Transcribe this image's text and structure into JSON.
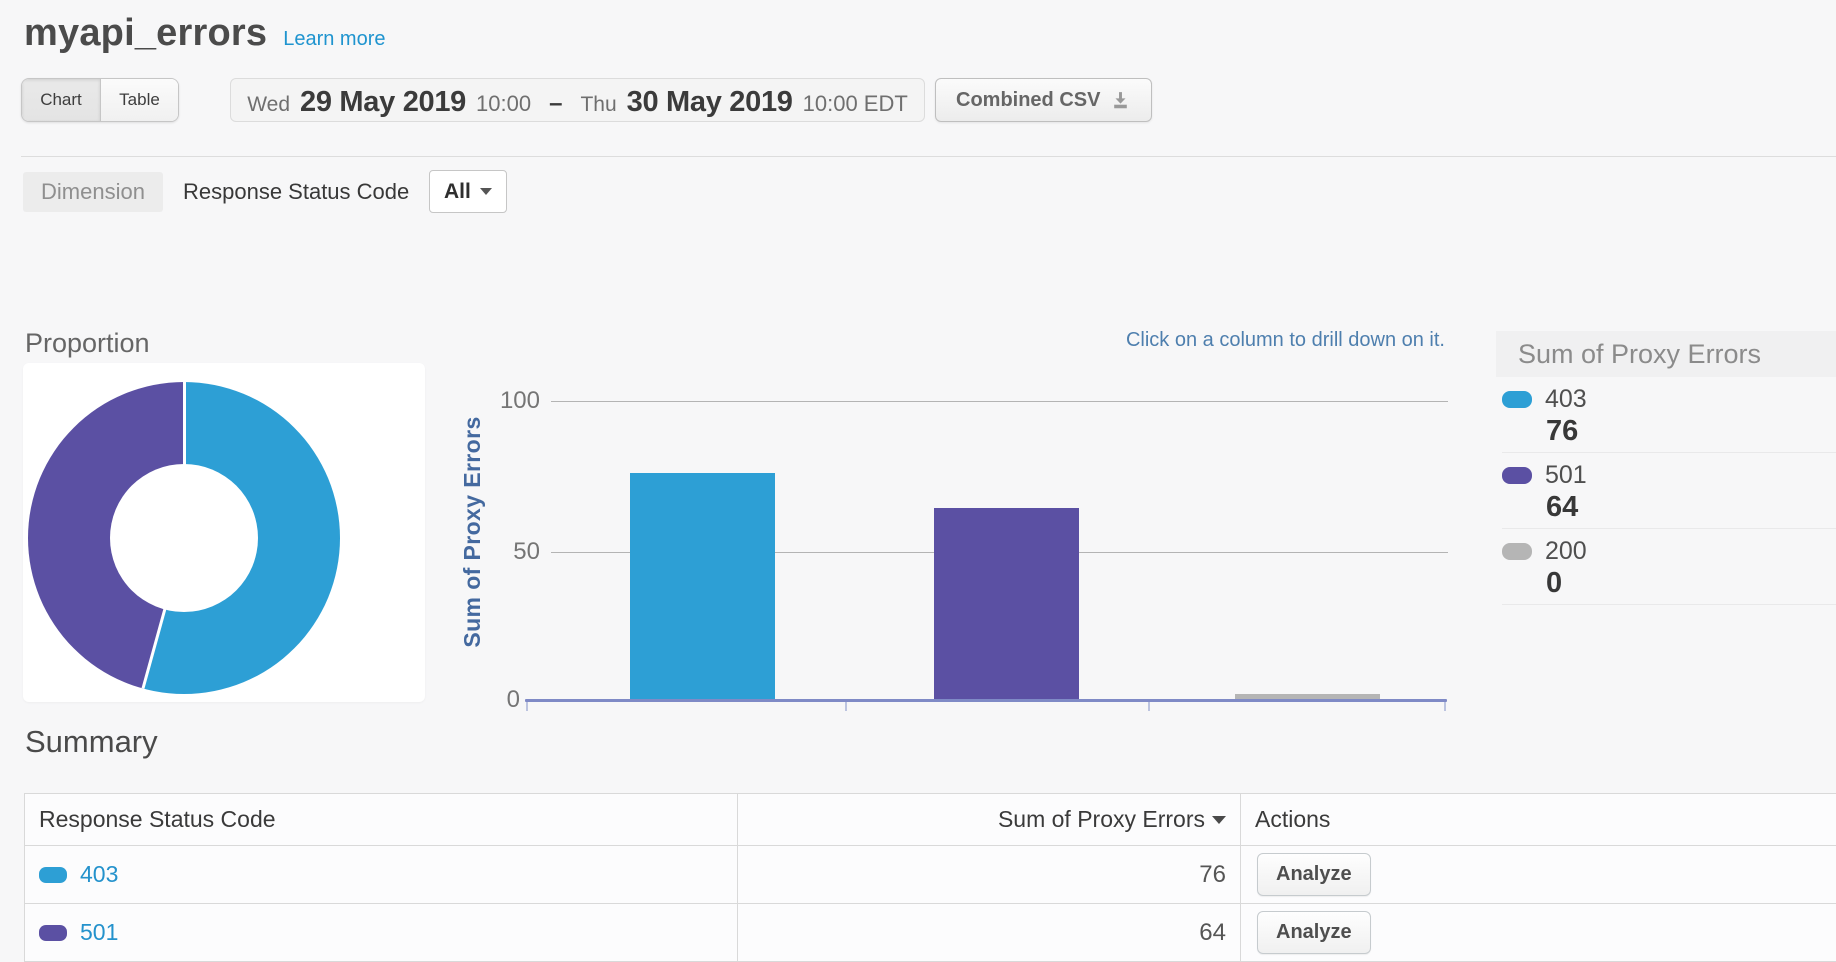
{
  "header": {
    "title": "myapi_errors",
    "learn_more": "Learn more"
  },
  "toolbar": {
    "view_toggle": {
      "chart": "Chart",
      "table": "Table",
      "active": "Chart"
    },
    "date_range": {
      "start_day": "Wed",
      "start_date": "29 May 2019",
      "start_time": "10:00",
      "separator": "–",
      "end_day": "Thu",
      "end_date": "30 May 2019",
      "end_time": "10:00 EDT"
    },
    "csv_button": "Combined CSV"
  },
  "dimension": {
    "label": "Dimension",
    "name": "Response Status Code",
    "filter": "All"
  },
  "chart_data": [
    {
      "type": "pie",
      "style": "donut",
      "title": "Proportion",
      "categories": [
        "403",
        "501",
        "200"
      ],
      "values": [
        76,
        64,
        0
      ],
      "colors": [
        "#2d9fd5",
        "#5b50a3",
        "#b5b5b5"
      ]
    },
    {
      "type": "bar",
      "categories": [
        "403",
        "501",
        "200"
      ],
      "values": [
        76,
        64,
        0
      ],
      "colors": [
        "#2d9fd5",
        "#5b50a3",
        "#b5b5b5"
      ],
      "ylabel": "Sum of Proxy Errors",
      "yticks": [
        0,
        50,
        100
      ],
      "ylim": [
        0,
        100
      ],
      "grid": true,
      "legend_position": "right",
      "annotation": "Click on a column to drill down on it."
    }
  ],
  "legend": {
    "title": "Sum of Proxy Errors",
    "items": [
      {
        "code": "403",
        "value": "76",
        "color": "#2d9fd5"
      },
      {
        "code": "501",
        "value": "64",
        "color": "#5b50a3"
      },
      {
        "code": "200",
        "value": "0",
        "color": "#b5b5b5"
      }
    ]
  },
  "summary": {
    "title": "Summary",
    "columns": [
      "Response Status Code",
      "Sum of Proxy Errors",
      "Actions"
    ],
    "rows": [
      {
        "code": "403",
        "color": "#2d9fd5",
        "value": "76",
        "action": "Analyze"
      },
      {
        "code": "501",
        "color": "#5b50a3",
        "value": "64",
        "action": "Analyze"
      }
    ]
  }
}
